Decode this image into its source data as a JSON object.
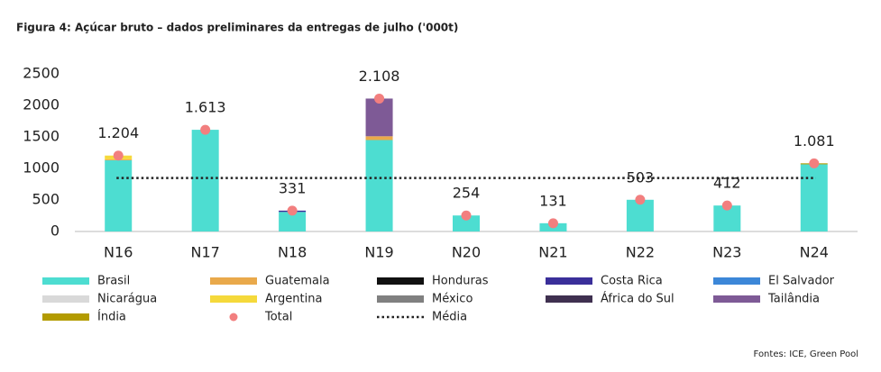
{
  "chart_data": {
    "type": "stacked_bar",
    "title": "Figura 4: Açúcar bruto – dados preliminares da entregas de julho ('000t)",
    "source": "Fontes: ICE, Green Pool",
    "categories": [
      "N16",
      "N17",
      "N18",
      "N19",
      "N20",
      "N21",
      "N22",
      "N23",
      "N24"
    ],
    "ylim": [
      0,
      2500
    ],
    "yticks": [
      0,
      500,
      1000,
      1500,
      2000,
      2500
    ],
    "series": [
      {
        "name": "Brasil",
        "color": "#4dddd1",
        "values": [
          1130,
          1613,
          310,
          1450,
          254,
          131,
          503,
          412,
          1065
        ]
      },
      {
        "name": "Guatemala",
        "color": "#e9a94b",
        "values": [
          14,
          0,
          0,
          60,
          0,
          0,
          0,
          0,
          0
        ]
      },
      {
        "name": "Honduras",
        "color": "#111111",
        "values": [
          0,
          0,
          0,
          0,
          0,
          0,
          0,
          0,
          0
        ]
      },
      {
        "name": "Costa Rica",
        "color": "#3a2f9a",
        "values": [
          0,
          0,
          21,
          0,
          0,
          0,
          0,
          0,
          0
        ]
      },
      {
        "name": "El Salvador",
        "color": "#3c87d8",
        "values": [
          0,
          0,
          0,
          0,
          0,
          0,
          0,
          0,
          0
        ]
      },
      {
        "name": "Nicarágua",
        "color": "#d9d9d9",
        "values": [
          0,
          0,
          0,
          0,
          0,
          0,
          0,
          0,
          0
        ]
      },
      {
        "name": "Argentina",
        "color": "#f5d93b",
        "values": [
          60,
          0,
          0,
          0,
          0,
          0,
          0,
          0,
          0
        ]
      },
      {
        "name": "México",
        "color": "#808080",
        "values": [
          0,
          0,
          0,
          0,
          0,
          0,
          0,
          0,
          0
        ]
      },
      {
        "name": "África do Sul",
        "color": "#3f3050",
        "values": [
          0,
          0,
          0,
          0,
          0,
          0,
          0,
          0,
          0
        ]
      },
      {
        "name": "Tailândia",
        "color": "#7e5a96",
        "values": [
          0,
          0,
          0,
          598,
          0,
          0,
          0,
          0,
          0
        ]
      },
      {
        "name": "Índia",
        "color": "#b39b00",
        "values": [
          0,
          0,
          0,
          0,
          0,
          0,
          0,
          0,
          16
        ]
      }
    ],
    "total": {
      "name": "Total",
      "color": "#f27f7f",
      "values": [
        1204,
        1613,
        331,
        2108,
        254,
        131,
        503,
        412,
        1081
      ],
      "value_labels": [
        "1.204",
        "1.613",
        "331",
        "2.108",
        "254",
        "131",
        "503",
        "412",
        "1.081"
      ]
    },
    "average": {
      "name": "Média",
      "value": 849,
      "color": "#222222"
    }
  }
}
